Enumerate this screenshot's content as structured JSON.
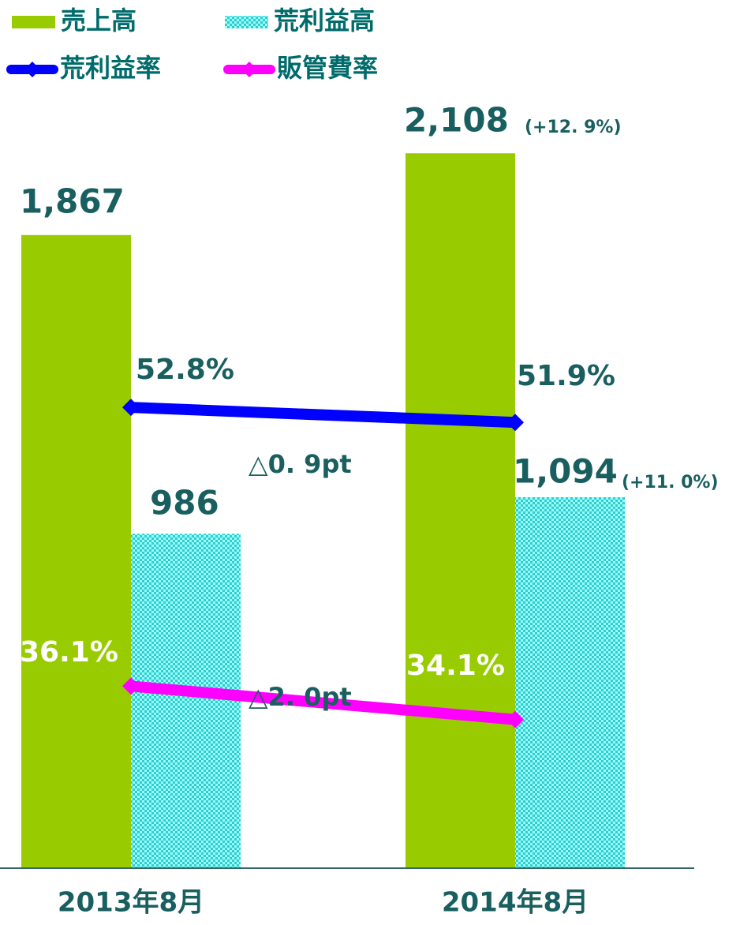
{
  "chart_data": {
    "type": "bar_line",
    "categories": [
      "2013年8月",
      "2014年8月"
    ],
    "ylim": [
      0,
      2560
    ],
    "y2lim": [
      25.2,
      77.2
    ],
    "series": [
      {
        "name": "売上高",
        "color": "#99cc00",
        "values": [
          1867,
          2108
        ],
        "value_labels": [
          "1,867",
          "2,108"
        ]
      },
      {
        "name": "荒利益高",
        "color": "#33cccc",
        "values": [
          986,
          1094
        ],
        "value_labels": [
          "986",
          "1,094"
        ]
      },
      {
        "name": "荒利益率",
        "color": "#0000ff",
        "axis": "y2",
        "values": [
          52.8,
          51.9
        ],
        "value_labels": [
          "52.8%",
          "51.9%"
        ]
      },
      {
        "name": "販管費率",
        "color": "#ff00ff",
        "axis": "y2",
        "values": [
          36.1,
          34.1
        ],
        "value_labels": [
          "36.1%",
          "34.1%"
        ]
      }
    ],
    "annotations": [
      "(+12. 9%)",
      "(+11. 0%)",
      "△0. 9pt",
      "△2. 0pt"
    ]
  }
}
